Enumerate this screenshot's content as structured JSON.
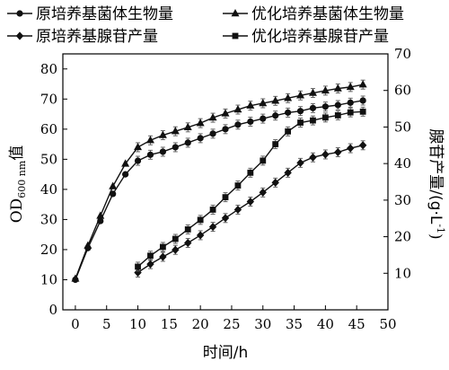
{
  "chart_data": {
    "type": "line",
    "xlabel": "时间/h",
    "ylabel_left": "OD",
    "ylabel_left_subscript": "600 nm",
    "ylabel_left_suffix": "值",
    "ylabel_right": "腺苷产量/(g·L",
    "ylabel_right_superscript": "-1",
    "ylabel_right_close": ")",
    "xlim": [
      -2,
      50
    ],
    "xticks": [
      0,
      5,
      10,
      15,
      20,
      25,
      30,
      35,
      40,
      45,
      50
    ],
    "ylim_left": [
      0,
      85
    ],
    "yticks_left": [
      0,
      10,
      20,
      30,
      40,
      50,
      60,
      70,
      80
    ],
    "ylim_right": [
      0,
      70
    ],
    "yticks_right": [
      10,
      20,
      30,
      40,
      50,
      60,
      70
    ],
    "grid": false,
    "legend_placement": "top",
    "series": [
      {
        "name": "原培养基菌体生物量",
        "axis": "left",
        "marker": "circle",
        "x": [
          0,
          2,
          4,
          6,
          8,
          10,
          12,
          14,
          16,
          18,
          20,
          22,
          24,
          26,
          28,
          30,
          32,
          34,
          36,
          38,
          40,
          42,
          44,
          46
        ],
        "values": [
          10,
          20.5,
          29.5,
          38.5,
          45,
          49.5,
          51.5,
          52.5,
          54,
          55.5,
          57,
          58.5,
          60,
          61.5,
          62.5,
          63.5,
          64.5,
          65.5,
          66,
          67,
          67.5,
          68,
          68.8,
          69.5
        ]
      },
      {
        "name": "优化培养基菌体生物量",
        "axis": "left",
        "marker": "triangle",
        "x": [
          0,
          2,
          4,
          6,
          8,
          10,
          12,
          14,
          16,
          18,
          20,
          22,
          24,
          26,
          28,
          30,
          32,
          34,
          36,
          38,
          40,
          42,
          44,
          46
        ],
        "values": [
          10.3,
          21.3,
          31.2,
          41,
          48.5,
          54,
          56.3,
          58,
          59.3,
          60.6,
          62,
          63.8,
          65.2,
          66.5,
          67.8,
          68.6,
          69.4,
          70.3,
          71.2,
          72,
          72.8,
          73.5,
          74,
          74.8
        ]
      },
      {
        "name": "原培养基腺苷产量",
        "axis": "right",
        "marker": "diamond",
        "x": [
          10,
          12,
          14,
          16,
          18,
          20,
          22,
          24,
          26,
          28,
          30,
          32,
          34,
          36,
          38,
          40,
          42,
          44,
          46
        ],
        "values": [
          10.2,
          12.5,
          14.5,
          16.4,
          18.3,
          20.4,
          22.7,
          25.1,
          27.4,
          29.6,
          32.1,
          34.8,
          37.5,
          40.2,
          41.7,
          42.5,
          43.1,
          44.2,
          45
        ]
      },
      {
        "name": "优化培养基腺苷产量",
        "axis": "right",
        "marker": "square",
        "x": [
          10,
          12,
          14,
          16,
          18,
          20,
          22,
          24,
          26,
          28,
          30,
          32,
          34,
          36,
          38,
          40,
          42,
          44,
          46
        ],
        "values": [
          11.8,
          14.8,
          17.2,
          19.4,
          22,
          24.6,
          27.4,
          30.8,
          34,
          37.5,
          40.8,
          45.3,
          48.8,
          51.2,
          51.8,
          52.6,
          53.2,
          54,
          54.2
        ]
      }
    ]
  },
  "colors": {
    "series": "#111111",
    "axes": "#000000",
    "error_bar": "#555555",
    "background": "#ffffff"
  }
}
